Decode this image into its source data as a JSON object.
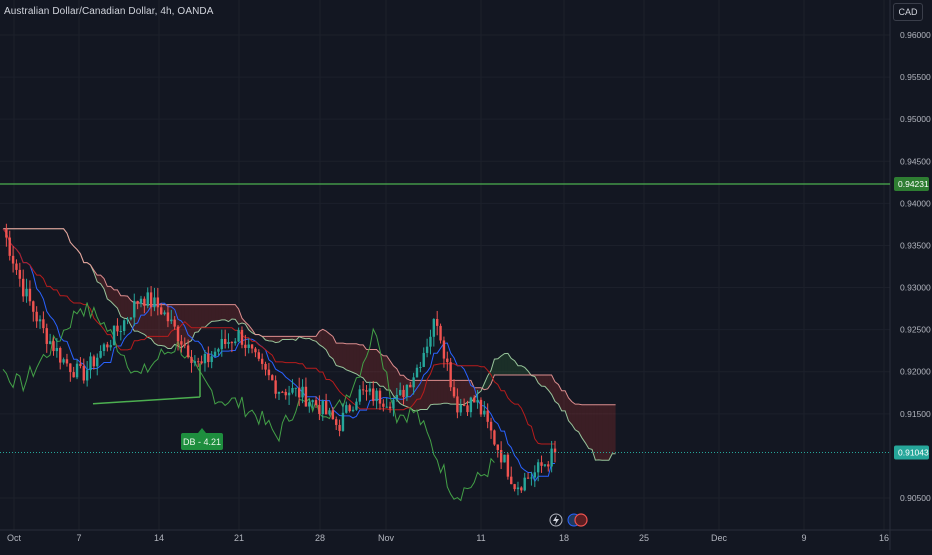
{
  "header": {
    "symbol_title": "Australian Dollar/Canadian Dollar, 4h, OANDA",
    "currency_button": "CAD"
  },
  "colors": {
    "background": "#131722",
    "up": "#26a69a",
    "down": "#ef5350",
    "tenkan": "#2962ff",
    "kijun": "#b71c1c",
    "chikou": "#43a047",
    "spanA": "#a5d6a7",
    "spanB": "#ef9a9a",
    "level_line": "#4caf50",
    "price_label": "#26a69a"
  },
  "chart_data": {
    "type": "candlestick",
    "symbol": "Australian Dollar/Canadian Dollar",
    "interval": "4h",
    "source": "OANDA",
    "currency": "CAD",
    "y_axis": {
      "ticks": [
        "0.96000",
        "0.95500",
        "0.95000",
        "0.94500",
        "0.94000",
        "0.93500",
        "0.93000",
        "0.92500",
        "0.92000",
        "0.91500",
        "0.90500"
      ],
      "range": [
        0.902,
        0.9632
      ]
    },
    "x_axis": {
      "ticks": [
        "Oct",
        "7",
        "14",
        "21",
        "28",
        "Nov",
        "11",
        "18",
        "25",
        "Dec",
        "9",
        "16"
      ]
    },
    "indicators": [
      "Ichimoku Cloud"
    ],
    "horizontal_level": {
      "value": 0.9423,
      "label": "0.94231"
    },
    "current_price": {
      "value": 0.9104,
      "label": "0.91043"
    },
    "pattern_label": {
      "text": "DB - 4.21",
      "value": 0.9162
    },
    "price_path": [
      [
        "Oct",
        0.937
      ],
      [
        "Oct 2",
        0.93
      ],
      [
        "Oct 4",
        0.925
      ],
      [
        "Oct 6",
        0.9215
      ],
      [
        "Oct 7",
        0.9195
      ],
      [
        "Oct 9",
        0.9225
      ],
      [
        "Oct 11",
        0.9255
      ],
      [
        "Oct 13",
        0.929
      ],
      [
        "Oct 14",
        0.9275
      ],
      [
        "Oct 16",
        0.924
      ],
      [
        "Oct 18",
        0.9205
      ],
      [
        "Oct 20",
        0.923
      ],
      [
        "Oct 21",
        0.9245
      ],
      [
        "Oct 23",
        0.9205
      ],
      [
        "Oct 25",
        0.918
      ],
      [
        "Oct 27",
        0.9175
      ],
      [
        "Oct 28",
        0.916
      ],
      [
        "Oct 30",
        0.9135
      ],
      [
        "Nov",
        0.9175
      ],
      [
        "Nov 2",
        0.917
      ],
      [
        "Nov 4",
        0.9165
      ],
      [
        "Nov 6",
        0.9205
      ],
      [
        "Nov 8",
        0.9265
      ],
      [
        "Nov 9",
        0.916
      ],
      [
        "Nov 11",
        0.9165
      ],
      [
        "Nov 13",
        0.9115
      ],
      [
        "Nov 15",
        0.9065
      ],
      [
        "Nov 17",
        0.908
      ],
      [
        "Nov 18",
        0.9104
      ]
    ]
  }
}
